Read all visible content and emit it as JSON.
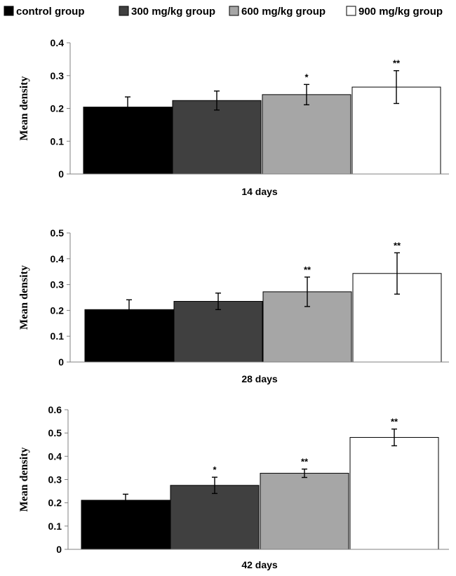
{
  "legend": [
    {
      "label": "control group",
      "color": "#000000"
    },
    {
      "label": "300 mg/kg group",
      "color": "#404040"
    },
    {
      "label": "600 mg/kg group",
      "color": "#a6a6a6"
    },
    {
      "label": "900 mg/kg group",
      "color": "#ffffff"
    }
  ],
  "chart_data": [
    {
      "type": "bar",
      "xlabel": "14 days",
      "ylabel": "Mean density",
      "ylim": [
        0,
        0.4
      ],
      "yticks": [
        "0",
        "0.1",
        "0.2",
        "0.3",
        "0.4"
      ],
      "series": [
        {
          "name": "control group",
          "value": 0.204,
          "error": 0.031,
          "sig": ""
        },
        {
          "name": "300 mg/kg group",
          "value": 0.224,
          "error": 0.029,
          "sig": ""
        },
        {
          "name": "600 mg/kg group",
          "value": 0.242,
          "error": 0.031,
          "sig": "*"
        },
        {
          "name": "900 mg/kg group",
          "value": 0.265,
          "error": 0.05,
          "sig": "**"
        }
      ]
    },
    {
      "type": "bar",
      "xlabel": "28 days",
      "ylabel": "Mean density",
      "ylim": [
        0,
        0.5
      ],
      "yticks": [
        "0",
        "0.1",
        "0.2",
        "0.3",
        "0.4",
        "0.5"
      ],
      "series": [
        {
          "name": "control group",
          "value": 0.203,
          "error": 0.038,
          "sig": ""
        },
        {
          "name": "300 mg/kg group",
          "value": 0.235,
          "error": 0.032,
          "sig": ""
        },
        {
          "name": "600 mg/kg group",
          "value": 0.272,
          "error": 0.057,
          "sig": "**"
        },
        {
          "name": "900 mg/kg group",
          "value": 0.343,
          "error": 0.08,
          "sig": "**"
        }
      ]
    },
    {
      "type": "bar",
      "xlabel": "42 days",
      "ylabel": "Mean density",
      "ylim": [
        0,
        0.6
      ],
      "yticks": [
        "0",
        "0.1",
        "0.2",
        "0.3",
        "0.4",
        "0.5",
        "0.6"
      ],
      "series": [
        {
          "name": "control group",
          "value": 0.211,
          "error": 0.026,
          "sig": ""
        },
        {
          "name": "300 mg/kg group",
          "value": 0.275,
          "error": 0.035,
          "sig": "*"
        },
        {
          "name": "600 mg/kg group",
          "value": 0.327,
          "error": 0.018,
          "sig": "**"
        },
        {
          "name": "900 mg/kg group",
          "value": 0.481,
          "error": 0.036,
          "sig": "**"
        }
      ]
    }
  ]
}
